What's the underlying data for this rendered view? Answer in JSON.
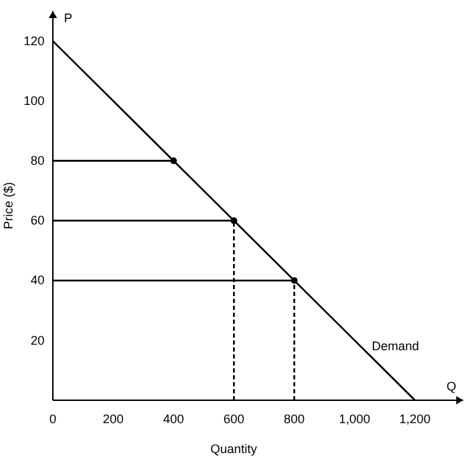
{
  "chart_data": {
    "type": "line",
    "xlabel": "Quantity",
    "ylabel": "Price ($)",
    "annotations": [
      "P",
      "Q"
    ],
    "xlim": [
      0,
      1360
    ],
    "ylim": [
      0,
      130
    ],
    "xticks": [
      0,
      200,
      400,
      600,
      800,
      {
        "value": 1000,
        "label": "1,000"
      },
      {
        "value": 1200,
        "label": "1,200"
      }
    ],
    "yticks": [
      20,
      40,
      60,
      80,
      100,
      120
    ],
    "tick_labels": "xy",
    "series": [
      {
        "name": "Demand",
        "type": "line",
        "color": "#000000",
        "x": [
          0,
          1200
        ],
        "values": [
          120,
          0
        ],
        "line_style": "solid"
      },
      {
        "type": "line",
        "color": "#000000",
        "x": [
          0,
          400
        ],
        "values": [
          80,
          80
        ],
        "line_style": "solid"
      },
      {
        "type": "line",
        "color": "#000000",
        "x": [
          0,
          600
        ],
        "values": [
          60,
          60
        ],
        "line_style": "solid"
      },
      {
        "type": "line",
        "color": "#000000",
        "x": [
          0,
          800
        ],
        "values": [
          40,
          40
        ],
        "line_style": "solid"
      },
      {
        "type": "line",
        "color": "#000000",
        "x": [
          600,
          600
        ],
        "values": [
          0,
          60
        ],
        "line_style": "dashed"
      },
      {
        "type": "line",
        "color": "#000000",
        "x": [
          800,
          800
        ],
        "values": [
          0,
          40
        ],
        "line_style": "dashed"
      },
      {
        "type": "scatter",
        "color": "#000000",
        "x": [
          400,
          600,
          800
        ],
        "values": [
          80,
          60,
          40
        ],
        "marker": "circle"
      }
    ]
  }
}
